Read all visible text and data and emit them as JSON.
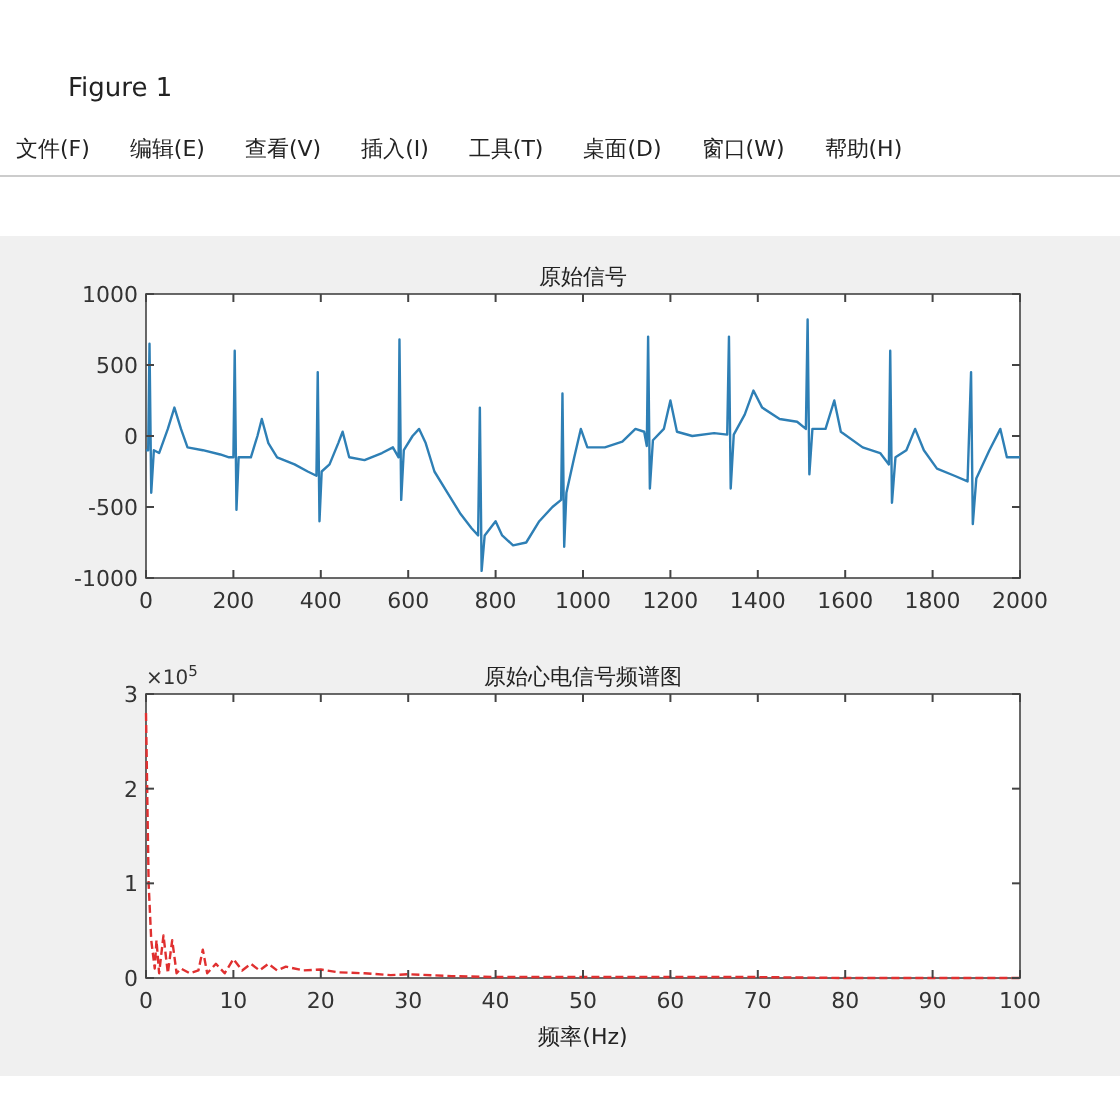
{
  "chart_data": [
    {
      "type": "other",
      "title": "Figure 1",
      "annotations": [
        "文件(F)",
        "编辑(E)",
        "查看(V)",
        "插入(I)",
        "工具(T)",
        "桌面(D)",
        "窗口(W)",
        "帮助(H)"
      ]
    },
    {
      "type": "line",
      "title": "原始信号",
      "xlim": [
        0,
        2000
      ],
      "ylim": [
        -1000,
        1000
      ],
      "xticks": [
        0,
        200,
        400,
        600,
        800,
        1000,
        1200,
        1400,
        1600,
        1800,
        2000
      ],
      "yticks": [
        -1000,
        -500,
        0,
        500,
        1000
      ],
      "x": [
        0,
        5,
        8,
        12,
        18,
        30,
        50,
        65,
        80,
        95,
        130,
        170,
        190,
        200,
        203,
        207,
        212,
        240,
        255,
        265,
        280,
        300,
        340,
        370,
        390,
        393,
        397,
        402,
        420,
        440,
        450,
        465,
        500,
        540,
        565,
        578,
        580,
        584,
        590,
        610,
        625,
        640,
        660,
        690,
        720,
        745,
        760,
        764,
        768,
        775,
        800,
        815,
        840,
        870,
        900,
        930,
        950,
        953,
        957,
        962,
        980,
        995,
        1010,
        1050,
        1090,
        1120,
        1140,
        1146,
        1149,
        1153,
        1160,
        1185,
        1200,
        1215,
        1250,
        1300,
        1330,
        1334,
        1338,
        1345,
        1370,
        1390,
        1410,
        1450,
        1490,
        1510,
        1514,
        1518,
        1525,
        1555,
        1575,
        1590,
        1640,
        1680,
        1700,
        1703,
        1707,
        1715,
        1740,
        1760,
        1780,
        1810,
        1850,
        1880,
        1888,
        1892,
        1900,
        1930,
        1955,
        1970,
        2000
      ],
      "series": [
        {
          "color": "#2e7fb5",
          "values": [
            -100,
            -100,
            650,
            -400,
            -100,
            -120,
            50,
            200,
            50,
            -80,
            -100,
            -130,
            -150,
            -150,
            600,
            -520,
            -150,
            -150,
            0,
            120,
            -50,
            -150,
            -200,
            -250,
            -280,
            450,
            -600,
            -250,
            -200,
            -50,
            30,
            -150,
            -170,
            -120,
            -80,
            -150,
            680,
            -450,
            -100,
            0,
            50,
            -50,
            -250,
            -400,
            -550,
            -650,
            -700,
            200,
            -950,
            -700,
            -600,
            -700,
            -770,
            -750,
            -600,
            -500,
            -450,
            300,
            -780,
            -400,
            -150,
            50,
            -80,
            -80,
            -40,
            50,
            30,
            -70,
            700,
            -370,
            -30,
            50,
            250,
            30,
            0,
            20,
            10,
            700,
            -370,
            10,
            150,
            320,
            200,
            120,
            100,
            50,
            820,
            -270,
            50,
            50,
            250,
            30,
            -80,
            -120,
            -200,
            600,
            -470,
            -150,
            -100,
            50,
            -100,
            -230,
            -280,
            -320,
            450,
            -620,
            -300,
            -100,
            50,
            -150,
            -150
          ]
        }
      ]
    },
    {
      "type": "line",
      "title": "原始心电信号频谱图",
      "xlabel": "频率(Hz)",
      "line_style": "dashed",
      "xlim": [
        0,
        100
      ],
      "ylim": [
        0,
        3
      ],
      "xticks": [
        0,
        10,
        20,
        30,
        40,
        50,
        60,
        70,
        80,
        90,
        100
      ],
      "yticks": [
        0,
        1,
        2,
        3
      ],
      "annotations": [
        "×10$^{5}$"
      ],
      "x": [
        0,
        0.3,
        0.6,
        1,
        1.2,
        1.5,
        2,
        2.5,
        3,
        3.5,
        4,
        5,
        6,
        6.5,
        7,
        8,
        9,
        10,
        11,
        12,
        13,
        14,
        15,
        16,
        18,
        20,
        22,
        25,
        28,
        30,
        35,
        40,
        50,
        60,
        70,
        80,
        90,
        100
      ],
      "series": [
        {
          "color": "#e03030",
          "values": [
            2.8,
            1.0,
            0.4,
            0.1,
            0.4,
            0.05,
            0.45,
            0.05,
            0.4,
            0.05,
            0.1,
            0.05,
            0.08,
            0.3,
            0.05,
            0.15,
            0.05,
            0.2,
            0.08,
            0.15,
            0.08,
            0.15,
            0.08,
            0.12,
            0.08,
            0.09,
            0.06,
            0.05,
            0.03,
            0.04,
            0.02,
            0.01,
            0.01,
            0.01,
            0.01,
            0.0,
            0.0,
            0.0
          ]
        }
      ]
    }
  ]
}
